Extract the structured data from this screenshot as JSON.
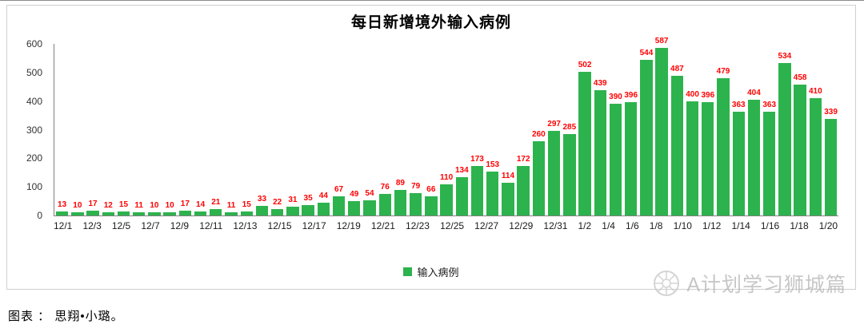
{
  "title": "每日新增境外输入病例",
  "legend": {
    "label": "输入病例",
    "color": "#2db34d"
  },
  "footer": {
    "credit": "图表 ： 思翔•小璐。"
  },
  "watermark": {
    "text": "A计划学习狮城篇"
  },
  "chart_data": {
    "type": "bar",
    "title": "每日新增境外输入病例",
    "xlabel": "",
    "ylabel": "",
    "ylim": [
      0,
      600
    ],
    "yticks": [
      0,
      100,
      200,
      300,
      400,
      500,
      600
    ],
    "grid": false,
    "legend": [
      "输入病例"
    ],
    "legend_position": "bottom",
    "bar_color": "#2db34d",
    "label_color": "#ff0000",
    "x_tick_interval": 2,
    "categories": [
      "12/1",
      "12/2",
      "12/3",
      "12/4",
      "12/5",
      "12/6",
      "12/7",
      "12/8",
      "12/9",
      "12/10",
      "12/11",
      "12/12",
      "12/13",
      "12/14",
      "12/15",
      "12/16",
      "12/17",
      "12/18",
      "12/19",
      "12/20",
      "12/21",
      "12/22",
      "12/23",
      "12/24",
      "12/25",
      "12/26",
      "12/27",
      "12/28",
      "12/29",
      "12/30",
      "12/31",
      "1/1",
      "1/2",
      "1/3",
      "1/4",
      "1/5",
      "1/6",
      "1/7",
      "1/8",
      "1/9",
      "1/10",
      "1/11",
      "1/12",
      "1/13",
      "1/14",
      "1/15",
      "1/16",
      "1/17",
      "1/18",
      "1/19",
      "1/20"
    ],
    "values": [
      13,
      10,
      17,
      12,
      15,
      11,
      10,
      10,
      17,
      14,
      21,
      11,
      15,
      33,
      22,
      31,
      35,
      44,
      67,
      49,
      54,
      76,
      89,
      79,
      66,
      110,
      134,
      173,
      153,
      114,
      172,
      260,
      297,
      285,
      502,
      439,
      390,
      396,
      544,
      587,
      487,
      400,
      396,
      479,
      363,
      404,
      363,
      534,
      458,
      410,
      339
    ]
  }
}
